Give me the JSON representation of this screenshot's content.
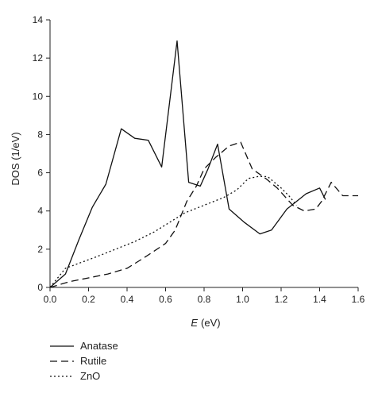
{
  "chart_data": {
    "type": "line",
    "xlabel_var": "E",
    "xlabel_unit": "(eV)",
    "ylabel": "DOS (1/eV)",
    "xlim": [
      0.0,
      1.6
    ],
    "ylim": [
      0,
      14
    ],
    "xticks": [
      "0.0",
      "0.2",
      "0.4",
      "0.6",
      "0.8",
      "1.0",
      "1.2",
      "1.4",
      "1.6"
    ],
    "yticks": [
      "0",
      "2",
      "4",
      "6",
      "8",
      "10",
      "12",
      "14"
    ],
    "grid": false,
    "legend_position": "bottom-left",
    "series": [
      {
        "name": "Anatase",
        "style": "solid",
        "x": [
          0.0,
          0.08,
          0.15,
          0.22,
          0.29,
          0.37,
          0.44,
          0.51,
          0.58,
          0.66,
          0.72,
          0.78,
          0.82,
          0.87,
          0.93,
          1.01,
          1.09,
          1.15,
          1.23,
          1.33,
          1.4,
          1.43
        ],
        "y": [
          0.0,
          0.7,
          2.5,
          4.2,
          5.4,
          8.3,
          7.8,
          7.7,
          6.3,
          12.9,
          5.5,
          5.3,
          6.2,
          7.5,
          4.1,
          3.4,
          2.8,
          3.0,
          4.1,
          4.9,
          5.2,
          4.6
        ]
      },
      {
        "name": "Rutile",
        "style": "dashed",
        "x": [
          0.0,
          0.1,
          0.2,
          0.3,
          0.4,
          0.48,
          0.54,
          0.6,
          0.65,
          0.71,
          0.76,
          0.8,
          0.86,
          0.93,
          0.99,
          1.05,
          1.12,
          1.18,
          1.26,
          1.32,
          1.38,
          1.41,
          1.46,
          1.52,
          1.6
        ],
        "y": [
          0.0,
          0.3,
          0.5,
          0.7,
          1.0,
          1.5,
          1.9,
          2.3,
          3.0,
          4.5,
          5.3,
          6.2,
          6.8,
          7.4,
          7.6,
          6.2,
          5.7,
          5.2,
          4.3,
          4.0,
          4.1,
          4.5,
          5.5,
          4.8,
          4.8
        ]
      },
      {
        "name": "ZnO",
        "style": "dotted",
        "x": [
          0.0,
          0.08,
          0.16,
          0.24,
          0.34,
          0.44,
          0.54,
          0.62,
          0.7,
          0.8,
          0.9,
          0.97,
          1.03,
          1.08,
          1.13,
          1.2,
          1.24,
          1.28
        ],
        "y": [
          0.0,
          1.0,
          1.3,
          1.6,
          2.0,
          2.4,
          2.9,
          3.4,
          3.9,
          4.3,
          4.7,
          5.1,
          5.7,
          5.8,
          5.8,
          5.2,
          4.8,
          4.3
        ]
      }
    ]
  }
}
